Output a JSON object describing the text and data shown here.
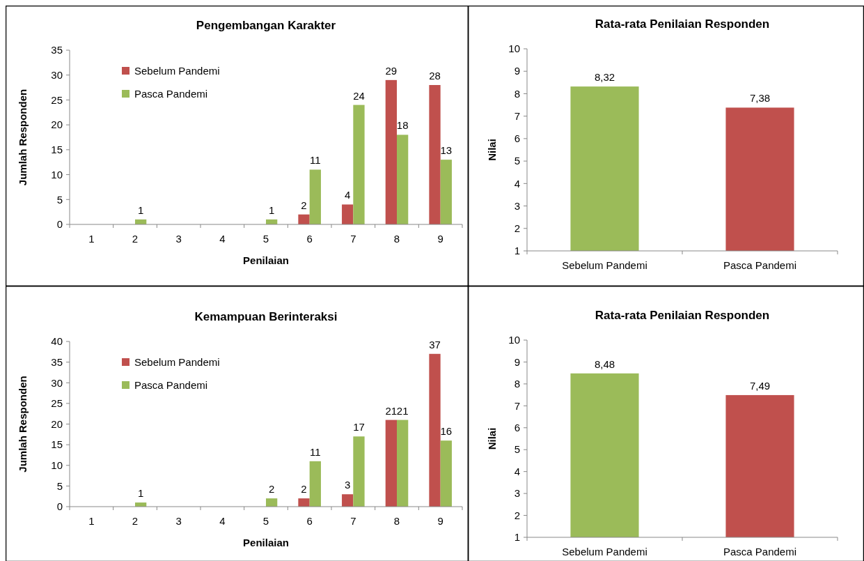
{
  "chart_data": [
    {
      "type": "bar",
      "title": "Pengembangan Karakter",
      "xlabel": "Penilaian",
      "ylabel": "Jumlah Responden",
      "categories": [
        "1",
        "2",
        "3",
        "4",
        "5",
        "6",
        "7",
        "8",
        "9"
      ],
      "series": [
        {
          "name": "Sebelum Pandemi",
          "color": "#c0504d",
          "values": [
            0,
            0,
            0,
            0,
            0,
            2,
            4,
            29,
            28
          ],
          "value_labels": [
            null,
            null,
            null,
            null,
            null,
            "2",
            "4",
            "29",
            "28"
          ]
        },
        {
          "name": "Pasca Pandemi",
          "color": "#9bbb59",
          "values": [
            0,
            1,
            0,
            0,
            1,
            11,
            24,
            18,
            13
          ],
          "value_labels": [
            null,
            "1",
            null,
            null,
            "1",
            "11",
            "24",
            "18",
            "13"
          ]
        }
      ],
      "ylim": [
        0,
        35
      ],
      "yticks": [
        0,
        5,
        10,
        15,
        20,
        25,
        30,
        35
      ],
      "legend": "top left",
      "grid": false
    },
    {
      "type": "bar",
      "title": "Rata-rata Penilaian Responden",
      "ylabel": "Nilai",
      "categories": [
        "Sebelum Pandemi",
        "Pasca Pandemi"
      ],
      "values": [
        8.32,
        7.38
      ],
      "colors": [
        "#9bbb59",
        "#c0504d"
      ],
      "value_labels": [
        "8,32",
        "7,38"
      ],
      "ylim": [
        1,
        10
      ],
      "yticks": [
        1,
        2,
        3,
        4,
        5,
        6,
        7,
        8,
        9,
        10
      ],
      "legend": false,
      "grid": false
    },
    {
      "type": "bar",
      "title": "Kemampuan Berinteraksi",
      "xlabel": "Penilaian",
      "ylabel": "Jumlah Responden",
      "categories": [
        "1",
        "2",
        "3",
        "4",
        "5",
        "6",
        "7",
        "8",
        "9"
      ],
      "series": [
        {
          "name": "Sebelum Pandemi",
          "color": "#c0504d",
          "values": [
            0,
            0,
            0,
            0,
            0,
            2,
            3,
            21,
            37
          ],
          "value_labels": [
            null,
            null,
            null,
            null,
            null,
            "2",
            "3",
            "21",
            "37"
          ]
        },
        {
          "name": "Pasca Pandemi",
          "color": "#9bbb59",
          "values": [
            0,
            1,
            0,
            0,
            2,
            11,
            17,
            21,
            16
          ],
          "value_labels": [
            null,
            "1",
            null,
            null,
            "2",
            "11",
            "17",
            "21",
            "16"
          ]
        }
      ],
      "ylim": [
        0,
        40
      ],
      "yticks": [
        0,
        5,
        10,
        15,
        20,
        25,
        30,
        35,
        40
      ],
      "legend": "top left",
      "grid": false
    },
    {
      "type": "bar",
      "title": "Rata-rata Penilaian Responden",
      "ylabel": "Nilai",
      "categories": [
        "Sebelum Pandemi",
        "Pasca Pandemi"
      ],
      "values": [
        8.48,
        7.49
      ],
      "colors": [
        "#9bbb59",
        "#c0504d"
      ],
      "value_labels": [
        "8,48",
        "7,49"
      ],
      "ylim": [
        1,
        10
      ],
      "yticks": [
        1,
        2,
        3,
        4,
        5,
        6,
        7,
        8,
        9,
        10
      ],
      "legend": false,
      "grid": false
    }
  ]
}
